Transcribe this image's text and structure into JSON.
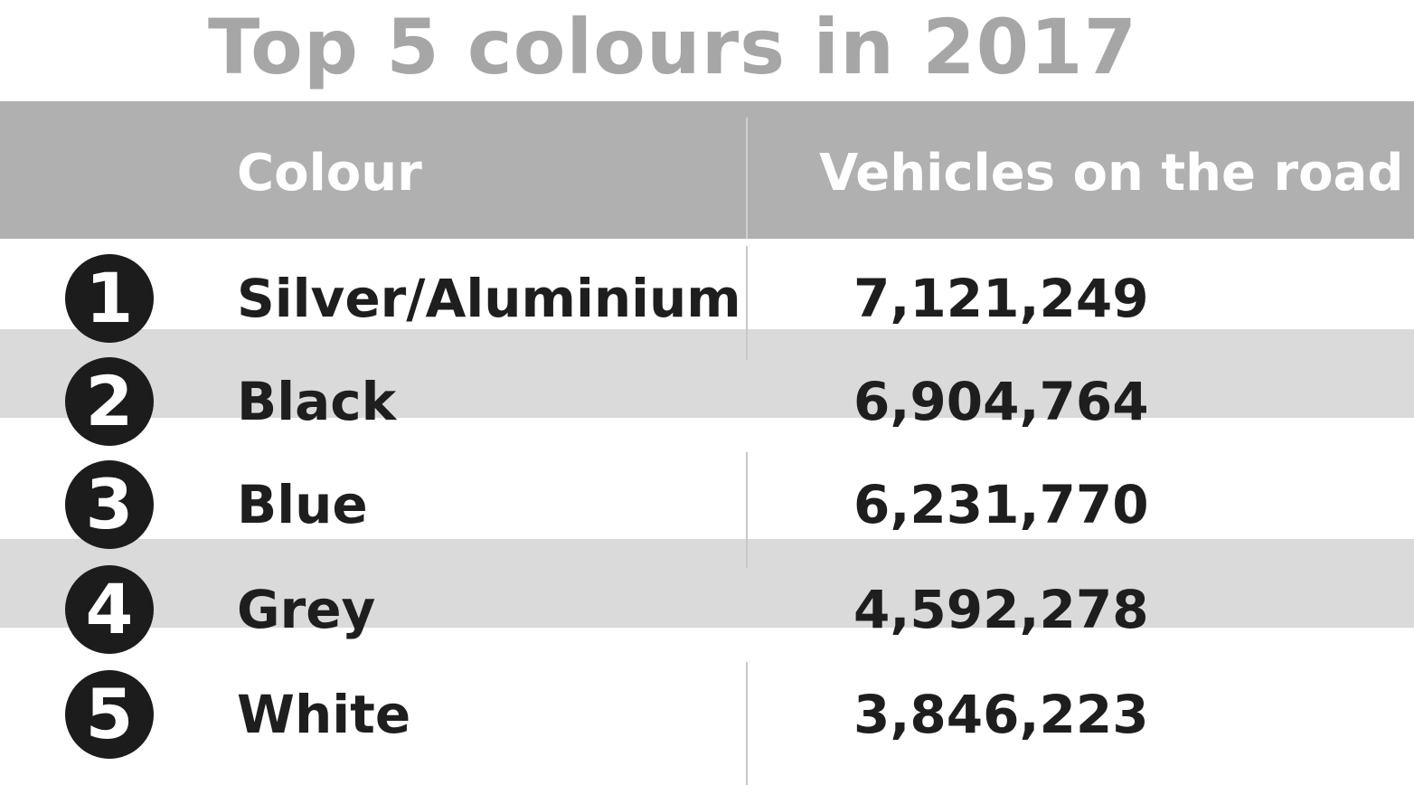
{
  "colors": {
    "title": "#a6a6a6",
    "header_bg": "#b0b0b0",
    "header_text": "#ffffff",
    "row_shaded": "#dadada",
    "row_plain": "#ffffff",
    "rank_circle": "#1c1c1c",
    "body_text": "#1e1e1e"
  },
  "chart_data": {
    "type": "table",
    "title": "Top 5 colours in 2017",
    "columns": [
      "Colour",
      "Vehicles on the road"
    ],
    "rows": [
      {
        "rank": "1",
        "colour": "Silver/Aluminium",
        "vehicles": "7,121,249"
      },
      {
        "rank": "2",
        "colour": "Black",
        "vehicles": "6,904,764"
      },
      {
        "rank": "3",
        "colour": "Blue",
        "vehicles": "6,231,770"
      },
      {
        "rank": "4",
        "colour": "Grey",
        "vehicles": "4,592,278"
      },
      {
        "rank": "5",
        "colour": "White",
        "vehicles": "3,846,223"
      }
    ],
    "values": [
      7121249,
      6904764,
      6231770,
      4592278,
      3846223
    ],
    "categories": [
      "Silver/Aluminium",
      "Black",
      "Blue",
      "Grey",
      "White"
    ],
    "row_shading": [
      false,
      true,
      false,
      true,
      false
    ]
  }
}
